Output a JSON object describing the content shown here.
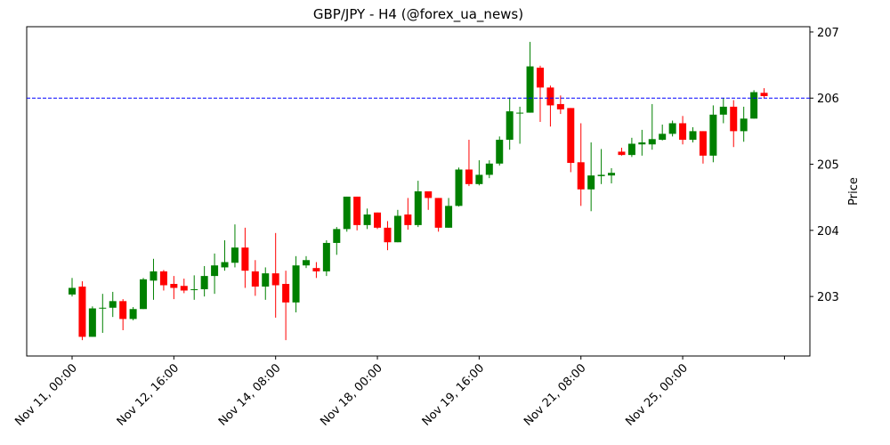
{
  "chart_data": {
    "type": "candlestick",
    "title": "GBP/JPY - H4 (@forex_ua_news)",
    "y_label": "Price",
    "up_color": "#008000",
    "down_color": "#ff0000",
    "hline": 206.0,
    "hline_color": "#0000ff",
    "xlim": [
      -4.46,
      72.5
    ],
    "ylim": [
      202.1,
      207.08
    ],
    "yticks": [
      203,
      204,
      205,
      206,
      207
    ],
    "xticks": [
      {
        "value": 0,
        "label": "Nov 11, 00:00"
      },
      {
        "value": 10,
        "label": "Nov 12, 16:00"
      },
      {
        "value": 20,
        "label": "Nov 14, 08:00"
      },
      {
        "value": 30,
        "label": "Nov 18, 00:00"
      },
      {
        "value": 40,
        "label": "Nov 19, 16:00"
      },
      {
        "value": 50,
        "label": "Nov 21, 08:00"
      },
      {
        "value": 60,
        "label": "Nov 25, 00:00"
      },
      {
        "value": 70,
        "label": null
      }
    ],
    "open": [
      203.03,
      203.15,
      202.39,
      202.82,
      202.83,
      202.93,
      202.66,
      202.81,
      203.24,
      203.38,
      203.19,
      203.16,
      203.1,
      203.11,
      203.31,
      203.44,
      203.51,
      203.74,
      203.38,
      203.15,
      203.35,
      203.19,
      202.91,
      203.47,
      203.43,
      203.38,
      203.81,
      204.02,
      204.51,
      204.08,
      204.27,
      204.04,
      203.82,
      204.24,
      204.08,
      204.59,
      204.49,
      204.04,
      204.37,
      204.92,
      204.7,
      204.84,
      205.01,
      205.37,
      205.77,
      205.78,
      206.46,
      206.16,
      205.91,
      205.85,
      205.03,
      204.62,
      204.82,
      204.83,
      205.19,
      205.14,
      205.3,
      205.3,
      205.37,
      205.46,
      205.62,
      205.37,
      205.5,
      205.13,
      205.75,
      205.87,
      205.5,
      205.69,
      206.08
    ],
    "high": [
      203.28,
      203.23,
      202.85,
      203.04,
      203.07,
      202.96,
      202.84,
      203.28,
      203.57,
      203.4,
      203.31,
      203.27,
      203.32,
      203.46,
      203.65,
      203.85,
      204.09,
      204.04,
      203.55,
      203.44,
      203.96,
      203.39,
      203.61,
      203.61,
      203.52,
      203.85,
      204.05,
      204.51,
      204.51,
      204.33,
      204.27,
      204.14,
      204.31,
      204.49,
      204.75,
      204.59,
      204.49,
      204.49,
      204.95,
      205.37,
      205.06,
      205.06,
      205.42,
      206.01,
      205.87,
      206.85,
      206.49,
      206.19,
      206.04,
      205.85,
      205.62,
      205.33,
      205.23,
      204.94,
      205.25,
      205.4,
      205.52,
      205.91,
      205.6,
      205.66,
      205.73,
      205.56,
      205.5,
      205.89,
      206.0,
      205.97,
      205.87,
      206.12,
      206.15
    ],
    "low": [
      203.0,
      202.34,
      202.39,
      202.45,
      202.69,
      202.49,
      202.64,
      202.81,
      202.95,
      203.09,
      202.96,
      203.05,
      202.95,
      203.0,
      203.04,
      203.39,
      203.44,
      203.13,
      203.01,
      202.95,
      202.68,
      202.34,
      202.76,
      203.43,
      203.28,
      203.31,
      203.63,
      203.98,
      204.0,
      204.02,
      204.02,
      203.7,
      203.82,
      204.01,
      204.05,
      204.31,
      203.98,
      204.04,
      204.36,
      204.67,
      204.68,
      204.79,
      204.98,
      205.22,
      205.31,
      205.78,
      205.64,
      205.57,
      205.76,
      204.88,
      204.37,
      204.29,
      204.7,
      204.71,
      205.13,
      205.11,
      205.13,
      205.22,
      205.36,
      205.42,
      205.3,
      205.33,
      205.01,
      205.03,
      205.62,
      205.26,
      205.34,
      205.69,
      206.0
    ],
    "close": [
      203.13,
      202.39,
      202.82,
      202.83,
      202.93,
      202.66,
      202.81,
      203.26,
      203.38,
      203.17,
      203.13,
      203.09,
      203.11,
      203.31,
      203.47,
      203.52,
      203.74,
      203.39,
      203.15,
      203.35,
      203.17,
      202.91,
      203.47,
      203.55,
      203.38,
      203.81,
      204.02,
      204.51,
      204.08,
      204.24,
      204.04,
      203.82,
      204.22,
      204.08,
      204.59,
      204.49,
      204.04,
      204.37,
      204.92,
      204.7,
      204.84,
      205.01,
      205.37,
      205.8,
      205.78,
      206.48,
      206.16,
      205.89,
      205.83,
      205.02,
      204.62,
      204.83,
      204.84,
      204.87,
      205.14,
      205.31,
      205.33,
      205.38,
      205.46,
      205.62,
      205.37,
      205.5,
      205.13,
      205.75,
      205.87,
      205.5,
      205.69,
      206.09,
      206.03
    ]
  }
}
